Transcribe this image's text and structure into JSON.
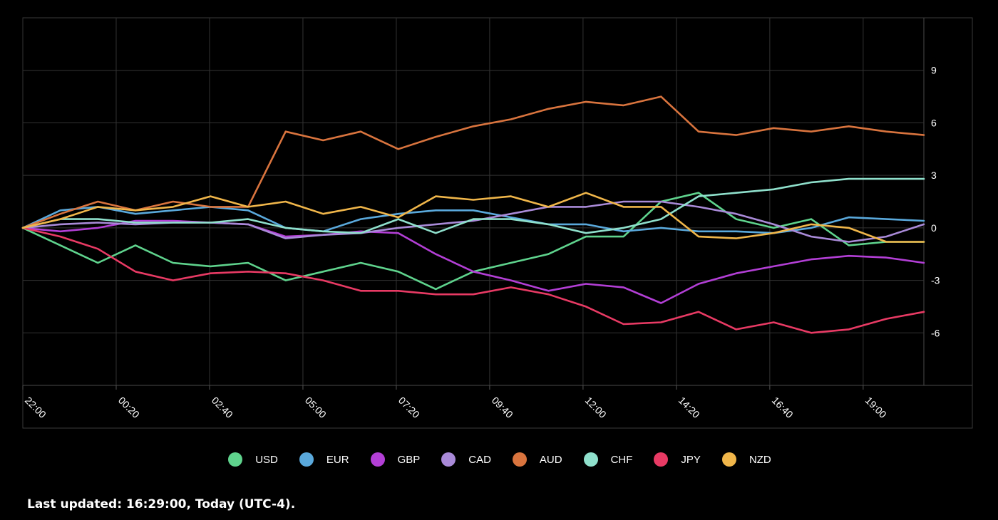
{
  "chart_data": {
    "type": "line",
    "x_tick_labels": [
      "22:00",
      "00:20",
      "02:40",
      "05:00",
      "07:20",
      "09:40",
      "12:00",
      "14:20",
      "16:40",
      "19:00"
    ],
    "y_tick_labels": [
      "9",
      "6",
      "3",
      "0",
      "-3",
      "-6"
    ],
    "y_ticks": [
      9,
      6,
      3,
      0,
      -3,
      -6
    ],
    "ylim": [
      -9,
      12
    ],
    "grid": true,
    "legend_position": "bottom",
    "x_hours": [
      0,
      1,
      2,
      3,
      4,
      5,
      6,
      7,
      8,
      9,
      10,
      11,
      12,
      13,
      14,
      15,
      16,
      17,
      18,
      19,
      20,
      21,
      22,
      23,
      24
    ],
    "series": [
      {
        "name": "USD",
        "color": "#5fd38d",
        "values": [
          0,
          -1,
          -2,
          -1,
          -2,
          -2.2,
          -2,
          -3,
          -2.5,
          -2,
          -2.5,
          -3.5,
          -2.5,
          -2,
          -1.5,
          -0.5,
          -0.5,
          1.5,
          2,
          0.5,
          0,
          0.5,
          -1,
          -0.8,
          -0.8
        ]
      },
      {
        "name": "EUR",
        "color": "#5aa9dc",
        "values": [
          0,
          1,
          1.2,
          0.8,
          1,
          1.2,
          1,
          0,
          -0.2,
          0.5,
          0.8,
          1,
          1,
          0.6,
          0.2,
          0.2,
          -0.2,
          0,
          -0.2,
          -0.2,
          -0.3,
          0,
          0.6,
          0.5,
          0.4
        ]
      },
      {
        "name": "GBP",
        "color": "#b33fd6",
        "values": [
          0,
          -0.2,
          0,
          0.4,
          0.4,
          0.3,
          0.2,
          -0.5,
          -0.4,
          -0.2,
          -0.3,
          -1.5,
          -2.5,
          -3,
          -3.6,
          -3.2,
          -3.4,
          -4.3,
          -3.2,
          -2.6,
          -2.2,
          -1.8,
          -1.6,
          -1.7,
          -2
        ]
      },
      {
        "name": "CAD",
        "color": "#a98ad8",
        "values": [
          0,
          0.2,
          0.3,
          0.2,
          0.3,
          0.3,
          0.2,
          -0.6,
          -0.4,
          -0.3,
          0,
          0.2,
          0.4,
          0.8,
          1.2,
          1.2,
          1.5,
          1.5,
          1.2,
          0.8,
          0.2,
          -0.5,
          -0.8,
          -0.5,
          0.2
        ]
      },
      {
        "name": "AUD",
        "color": "#d9743e",
        "values": [
          0,
          0.8,
          1.5,
          1,
          1.5,
          1.2,
          1.2,
          5.5,
          5,
          5.5,
          4.5,
          5.2,
          5.8,
          6.2,
          6.8,
          7.2,
          7,
          7.5,
          5.5,
          5.3,
          5.7,
          5.5,
          5.8,
          5.5,
          5.3
        ]
      },
      {
        "name": "CHF",
        "color": "#8fe0cc",
        "values": [
          0,
          0.5,
          0.5,
          0.3,
          0.3,
          0.3,
          0.5,
          0,
          -0.2,
          -0.3,
          0.5,
          -0.3,
          0.5,
          0.5,
          0.2,
          -0.3,
          0,
          0.5,
          1.8,
          2,
          2.2,
          2.6,
          2.8,
          2.8,
          2.8
        ]
      },
      {
        "name": "JPY",
        "color": "#e83a64",
        "values": [
          0,
          -0.5,
          -1.2,
          -2.5,
          -3,
          -2.6,
          -2.5,
          -2.6,
          -3,
          -3.6,
          -3.6,
          -3.8,
          -3.8,
          -3.4,
          -3.8,
          -4.5,
          -5.5,
          -5.4,
          -4.8,
          -5.8,
          -5.4,
          -6,
          -5.8,
          -5.2,
          -4.8
        ]
      },
      {
        "name": "NZD",
        "color": "#f0b64a",
        "values": [
          0,
          0.5,
          1.2,
          1,
          1.2,
          1.8,
          1.2,
          1.5,
          0.8,
          1.2,
          0.6,
          1.8,
          1.6,
          1.8,
          1.2,
          2,
          1.2,
          1.2,
          -0.5,
          -0.6,
          -0.3,
          0.2,
          0,
          -0.8,
          -0.8
        ]
      }
    ]
  },
  "footer": {
    "last_updated": "Last updated: 16:29:00, Today (UTC-4)."
  }
}
